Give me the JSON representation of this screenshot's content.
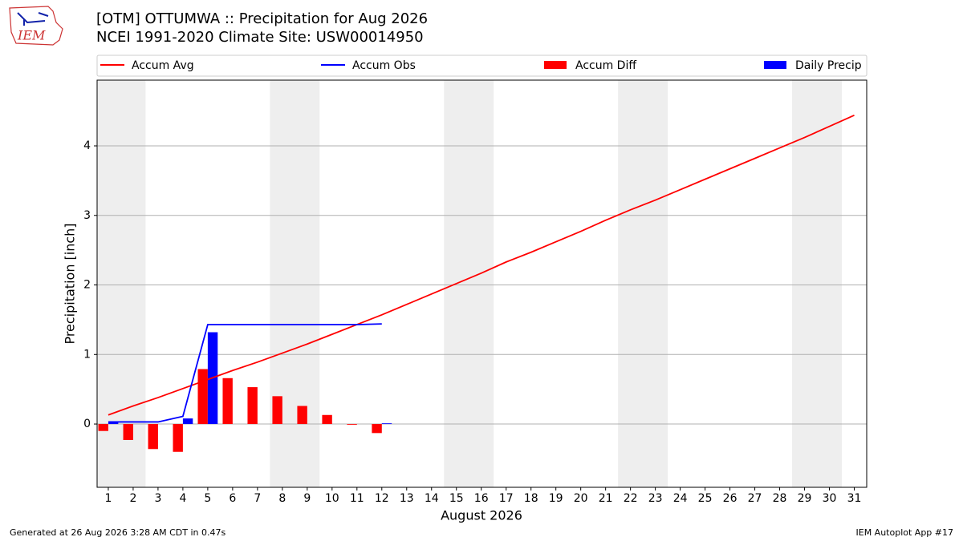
{
  "logo": "IEM",
  "footer_left": "Generated at 26 Aug 2026 3:28 AM CDT in 0.47s",
  "footer_right": "IEM Autoplot App #17",
  "chart_data": {
    "type": "bar_line",
    "title": "[OTM] OTTUMWA :: Precipitation for Aug 2026",
    "subtitle": "NCEI 1991-2020 Climate Site: USW00014950",
    "x_label": "August 2026",
    "y_label": "Precipitation [inch]",
    "x": [
      1,
      2,
      3,
      4,
      5,
      6,
      7,
      8,
      9,
      10,
      11,
      12,
      13,
      14,
      15,
      16,
      17,
      18,
      19,
      20,
      21,
      22,
      23,
      24,
      25,
      26,
      27,
      28,
      29,
      30,
      31
    ],
    "xlim": [
      0.55,
      31.5
    ],
    "xticks": [
      1,
      2,
      3,
      4,
      5,
      6,
      7,
      8,
      9,
      10,
      11,
      12,
      13,
      14,
      15,
      16,
      17,
      18,
      19,
      20,
      21,
      22,
      23,
      24,
      25,
      26,
      27,
      28,
      29,
      30,
      31
    ],
    "ylim": [
      -0.91,
      4.945
    ],
    "yticks": [
      0,
      1,
      2,
      3,
      4
    ],
    "grid": true,
    "shaded_spans": [
      [
        0.55,
        2.5
      ],
      [
        7.5,
        9.5
      ],
      [
        14.5,
        16.5
      ],
      [
        21.5,
        23.5
      ],
      [
        28.5,
        30.5
      ]
    ],
    "shade_color": "#eeeeee",
    "series": [
      {
        "name": "Accum Avg",
        "type": "line",
        "color": "#ff0000",
        "values": [
          0.13,
          0.26,
          0.38,
          0.51,
          0.64,
          0.77,
          0.89,
          1.02,
          1.15,
          1.29,
          1.43,
          1.57,
          1.72,
          1.87,
          2.02,
          2.17,
          2.33,
          2.47,
          2.62,
          2.77,
          2.93,
          3.08,
          3.22,
          3.37,
          3.52,
          3.67,
          3.82,
          3.97,
          4.12,
          4.28,
          4.44
        ]
      },
      {
        "name": "Accum Obs",
        "type": "line",
        "color": "#0000ff",
        "values": [
          0.03,
          0.03,
          0.03,
          0.11,
          1.43,
          1.43,
          1.43,
          1.43,
          1.43,
          1.43,
          1.43,
          1.44,
          null,
          null,
          null,
          null,
          null,
          null,
          null,
          null,
          null,
          null,
          null,
          null,
          null,
          null,
          null,
          null,
          null,
          null,
          null
        ]
      },
      {
        "name": "Accum Diff",
        "type": "bar",
        "side": "left",
        "color": "#ff0000",
        "values": [
          -0.1,
          -0.23,
          -0.36,
          -0.4,
          0.79,
          0.66,
          0.53,
          0.4,
          0.26,
          0.13,
          -0.01,
          -0.13,
          null,
          null,
          null,
          null,
          null,
          null,
          null,
          null,
          null,
          null,
          null,
          null,
          null,
          null,
          null,
          null,
          null,
          null,
          null
        ]
      },
      {
        "name": "Daily Precip",
        "type": "bar",
        "side": "right",
        "color": "#0000ff",
        "values": [
          0.03,
          0,
          0,
          0.08,
          1.32,
          0,
          0,
          0,
          0,
          0,
          0,
          0.01,
          null,
          null,
          null,
          null,
          null,
          null,
          null,
          null,
          null,
          null,
          null,
          null,
          null,
          null,
          null,
          null,
          null,
          null,
          null
        ]
      }
    ]
  }
}
